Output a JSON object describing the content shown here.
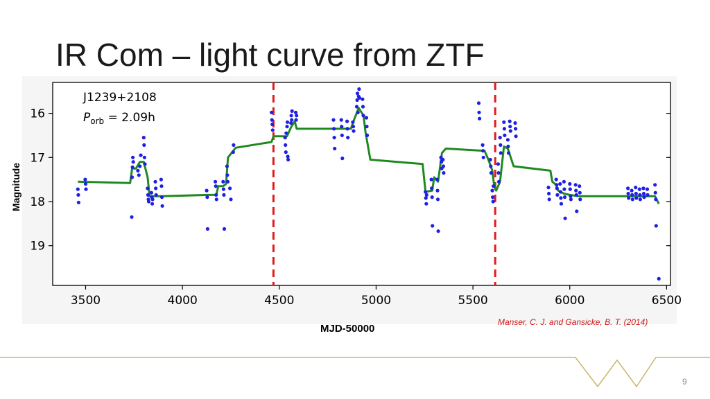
{
  "slide": {
    "title": "IR Com – light curve from ZTF",
    "citation": "Manser, C. J. and Gansicke, B. T. (2014)",
    "page_number": "9"
  },
  "colors": {
    "points": "#1f1fe6",
    "model_line": "#1e8a1e",
    "dashed_markers": "#e31a1a",
    "footer_line": "#c9b568",
    "citation": "#d11a1a"
  },
  "chart_data": {
    "type": "scatter",
    "title": "",
    "xlabel": "MJD-50000",
    "ylabel": "Magnitude",
    "xlim": [
      3330,
      6520
    ],
    "ylim": [
      19.9,
      15.3
    ],
    "y_inverted": true,
    "grid": false,
    "annotation_line1": "J1239+2108",
    "annotation_line2_symbol": "P",
    "annotation_line2_sub": "orb",
    "annotation_line2_value": " = 2.09h",
    "x_ticks": [
      3500,
      4000,
      4500,
      5000,
      5500,
      6000,
      6500
    ],
    "y_ticks": [
      16,
      17,
      18,
      19
    ],
    "vertical_markers": [
      4470,
      5615
    ],
    "series": [
      {
        "type": "scatter",
        "points": [
          [
            3460,
            17.72
          ],
          [
            3462,
            17.85
          ],
          [
            3464,
            18.02
          ],
          [
            3498,
            17.5
          ],
          [
            3500,
            17.6
          ],
          [
            3502,
            17.72
          ],
          [
            3738,
            18.35
          ],
          [
            3740,
            17.45
          ],
          [
            3742,
            17.22
          ],
          [
            3744,
            17.0
          ],
          [
            3746,
            17.1
          ],
          [
            3770,
            17.3
          ],
          [
            3775,
            17.4
          ],
          [
            3780,
            17.2
          ],
          [
            3785,
            16.95
          ],
          [
            3800,
            16.55
          ],
          [
            3802,
            16.72
          ],
          [
            3804,
            17.0
          ],
          [
            3806,
            17.15
          ],
          [
            3820,
            17.7
          ],
          [
            3822,
            17.85
          ],
          [
            3824,
            17.95
          ],
          [
            3826,
            18.0
          ],
          [
            3840,
            17.8
          ],
          [
            3842,
            17.9
          ],
          [
            3844,
            18.05
          ],
          [
            3846,
            17.95
          ],
          [
            3860,
            17.55
          ],
          [
            3862,
            17.7
          ],
          [
            3864,
            17.85
          ],
          [
            3890,
            17.5
          ],
          [
            3892,
            17.65
          ],
          [
            3894,
            17.9
          ],
          [
            3896,
            18.1
          ],
          [
            4125,
            17.75
          ],
          [
            4128,
            17.9
          ],
          [
            4130,
            18.62
          ],
          [
            4170,
            17.55
          ],
          [
            4172,
            17.65
          ],
          [
            4174,
            17.85
          ],
          [
            4176,
            17.95
          ],
          [
            4210,
            17.55
          ],
          [
            4212,
            17.72
          ],
          [
            4214,
            17.85
          ],
          [
            4216,
            18.62
          ],
          [
            4230,
            17.2
          ],
          [
            4232,
            17.4
          ],
          [
            4234,
            17.55
          ],
          [
            4245,
            17.7
          ],
          [
            4250,
            17.95
          ],
          [
            4262,
            16.88
          ],
          [
            4264,
            16.72
          ],
          [
            4460,
            15.98
          ],
          [
            4462,
            16.15
          ],
          [
            4464,
            16.25
          ],
          [
            4466,
            16.38
          ],
          [
            4530,
            16.55
          ],
          [
            4532,
            16.72
          ],
          [
            4534,
            16.88
          ],
          [
            4536,
            16.45
          ],
          [
            4540,
            16.3
          ],
          [
            4542,
            16.2
          ],
          [
            4544,
            16.98
          ],
          [
            4546,
            17.05
          ],
          [
            4560,
            16.22
          ],
          [
            4562,
            16.05
          ],
          [
            4564,
            16.15
          ],
          [
            4566,
            15.95
          ],
          [
            4585,
            15.98
          ],
          [
            4587,
            16.15
          ],
          [
            4589,
            16.05
          ],
          [
            4780,
            16.15
          ],
          [
            4782,
            16.35
          ],
          [
            4784,
            16.55
          ],
          [
            4786,
            16.8
          ],
          [
            4820,
            16.15
          ],
          [
            4822,
            16.3
          ],
          [
            4824,
            16.5
          ],
          [
            4826,
            17.02
          ],
          [
            4850,
            16.18
          ],
          [
            4852,
            16.35
          ],
          [
            4854,
            16.55
          ],
          [
            4880,
            16.2
          ],
          [
            4882,
            16.3
          ],
          [
            4884,
            16.4
          ],
          [
            4900,
            15.85
          ],
          [
            4902,
            15.7
          ],
          [
            4904,
            15.55
          ],
          [
            4906,
            15.98
          ],
          [
            4910,
            15.62
          ],
          [
            4912,
            15.45
          ],
          [
            4914,
            15.65
          ],
          [
            4930,
            15.68
          ],
          [
            4932,
            15.85
          ],
          [
            4934,
            16.05
          ],
          [
            4950,
            16.1
          ],
          [
            4952,
            16.3
          ],
          [
            4954,
            16.5
          ],
          [
            5255,
            17.78
          ],
          [
            5257,
            17.92
          ],
          [
            5259,
            18.05
          ],
          [
            5261,
            17.85
          ],
          [
            5285,
            17.5
          ],
          [
            5287,
            17.7
          ],
          [
            5289,
            17.9
          ],
          [
            5291,
            18.55
          ],
          [
            5315,
            17.5
          ],
          [
            5317,
            17.75
          ],
          [
            5319,
            17.95
          ],
          [
            5321,
            18.67
          ],
          [
            5335,
            17.0
          ],
          [
            5337,
            17.1
          ],
          [
            5339,
            17.25
          ],
          [
            5345,
            17.05
          ],
          [
            5347,
            17.2
          ],
          [
            5349,
            17.35
          ],
          [
            5530,
            15.77
          ],
          [
            5532,
            15.98
          ],
          [
            5534,
            16.12
          ],
          [
            5550,
            16.72
          ],
          [
            5552,
            16.85
          ],
          [
            5554,
            17.0
          ],
          [
            5590,
            17.05
          ],
          [
            5592,
            17.2
          ],
          [
            5594,
            17.35
          ],
          [
            5600,
            17.75
          ],
          [
            5602,
            17.9
          ],
          [
            5604,
            18.0
          ],
          [
            5606,
            17.65
          ],
          [
            5630,
            17.15
          ],
          [
            5632,
            17.35
          ],
          [
            5634,
            17.55
          ],
          [
            5640,
            16.55
          ],
          [
            5642,
            16.72
          ],
          [
            5644,
            16.9
          ],
          [
            5660,
            16.2
          ],
          [
            5662,
            16.35
          ],
          [
            5664,
            16.5
          ],
          [
            5680,
            16.6
          ],
          [
            5682,
            16.75
          ],
          [
            5684,
            16.9
          ],
          [
            5690,
            16.18
          ],
          [
            5692,
            16.3
          ],
          [
            5694,
            16.4
          ],
          [
            5718,
            16.22
          ],
          [
            5720,
            16.35
          ],
          [
            5722,
            16.52
          ],
          [
            5890,
            17.68
          ],
          [
            5892,
            17.82
          ],
          [
            5894,
            17.95
          ],
          [
            5930,
            17.5
          ],
          [
            5932,
            17.62
          ],
          [
            5934,
            17.7
          ],
          [
            5936,
            17.85
          ],
          [
            5950,
            17.6
          ],
          [
            5952,
            17.78
          ],
          [
            5954,
            17.92
          ],
          [
            5956,
            18.05
          ],
          [
            5970,
            17.55
          ],
          [
            5972,
            17.72
          ],
          [
            5974,
            17.9
          ],
          [
            5976,
            18.38
          ],
          [
            6000,
            17.6
          ],
          [
            6002,
            17.72
          ],
          [
            6004,
            17.88
          ],
          [
            6006,
            17.95
          ],
          [
            6030,
            17.62
          ],
          [
            6032,
            17.75
          ],
          [
            6034,
            17.85
          ],
          [
            6036,
            18.22
          ],
          [
            6050,
            17.65
          ],
          [
            6052,
            17.8
          ],
          [
            6054,
            17.95
          ],
          [
            6300,
            17.7
          ],
          [
            6302,
            17.82
          ],
          [
            6304,
            17.92
          ],
          [
            6320,
            17.75
          ],
          [
            6322,
            17.85
          ],
          [
            6324,
            17.95
          ],
          [
            6340,
            17.68
          ],
          [
            6342,
            17.82
          ],
          [
            6344,
            17.92
          ],
          [
            6360,
            17.72
          ],
          [
            6362,
            17.85
          ],
          [
            6364,
            17.95
          ],
          [
            6380,
            17.7
          ],
          [
            6382,
            17.82
          ],
          [
            6384,
            17.9
          ],
          [
            6400,
            17.72
          ],
          [
            6402,
            17.85
          ],
          [
            6440,
            17.62
          ],
          [
            6442,
            17.8
          ],
          [
            6444,
            17.95
          ],
          [
            6446,
            18.55
          ],
          [
            6460,
            19.75
          ]
        ]
      },
      {
        "type": "line",
        "points": [
          [
            3460,
            17.55
          ],
          [
            3730,
            17.58
          ],
          [
            3740,
            17.25
          ],
          [
            3760,
            17.25
          ],
          [
            3780,
            17.1
          ],
          [
            3800,
            17.1
          ],
          [
            3820,
            17.45
          ],
          [
            3830,
            17.88
          ],
          [
            3880,
            17.88
          ],
          [
            3890,
            17.88
          ],
          [
            4130,
            17.85
          ],
          [
            4175,
            17.85
          ],
          [
            4185,
            17.65
          ],
          [
            4210,
            17.65
          ],
          [
            4225,
            17.6
          ],
          [
            4235,
            17.0
          ],
          [
            4275,
            16.78
          ],
          [
            4460,
            16.65
          ],
          [
            4470,
            16.52
          ],
          [
            4540,
            16.52
          ],
          [
            4560,
            16.32
          ],
          [
            4580,
            16.18
          ],
          [
            4590,
            16.35
          ],
          [
            4870,
            16.35
          ],
          [
            4890,
            16.1
          ],
          [
            4910,
            15.88
          ],
          [
            4935,
            16.05
          ],
          [
            4945,
            16.42
          ],
          [
            4970,
            17.05
          ],
          [
            5240,
            17.15
          ],
          [
            5255,
            17.78
          ],
          [
            5290,
            17.75
          ],
          [
            5300,
            17.45
          ],
          [
            5320,
            17.55
          ],
          [
            5340,
            16.9
          ],
          [
            5360,
            16.8
          ],
          [
            5560,
            16.85
          ],
          [
            5580,
            17.05
          ],
          [
            5600,
            17.3
          ],
          [
            5610,
            17.65
          ],
          [
            5620,
            17.75
          ],
          [
            5640,
            17.55
          ],
          [
            5660,
            16.75
          ],
          [
            5680,
            16.8
          ],
          [
            5710,
            17.2
          ],
          [
            5900,
            17.3
          ],
          [
            5910,
            17.55
          ],
          [
            5930,
            17.62
          ],
          [
            5940,
            17.75
          ],
          [
            5970,
            17.82
          ],
          [
            6000,
            17.85
          ],
          [
            6050,
            17.88
          ],
          [
            6440,
            17.88
          ],
          [
            6460,
            18.05
          ]
        ]
      }
    ]
  }
}
